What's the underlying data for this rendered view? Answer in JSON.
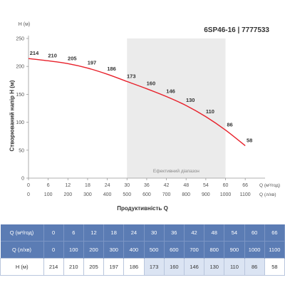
{
  "model": "6SP46-16 | 7777533",
  "chart_data": {
    "type": "line",
    "y_unit": "H (м)",
    "y_axis_label": "Створюваний напір H (м)",
    "x_axis_label": "Продуктивність Q",
    "x1_unit": "Q (м³/год)",
    "x2_unit": "Q (л/хв)",
    "x": [
      0,
      6,
      12,
      18,
      24,
      30,
      36,
      42,
      48,
      54,
      60,
      66
    ],
    "x2": [
      0,
      100,
      200,
      300,
      400,
      500,
      600,
      700,
      800,
      900,
      1000,
      1100
    ],
    "series": [
      {
        "values": [
          214,
          210,
          205,
          197,
          186,
          173,
          160,
          146,
          130,
          110,
          86,
          58
        ]
      }
    ],
    "ylim": [
      0,
      250
    ],
    "yticks": [
      0,
      50,
      100,
      150,
      200,
      250
    ],
    "xlim": [
      0,
      69
    ],
    "efficient_range": {
      "from": 30,
      "to": 60,
      "label": "Ефективний діапазон"
    },
    "grid": false,
    "line_color": "#e8202a",
    "band_color": "#ebebeb"
  },
  "table": {
    "rows": [
      {
        "label": "Q (м³/год)",
        "values": [
          "0",
          "6",
          "12",
          "18",
          "24",
          "30",
          "36",
          "42",
          "48",
          "54",
          "60",
          "66"
        ]
      },
      {
        "label": "Q (л/хв)",
        "values": [
          "0",
          "100",
          "200",
          "300",
          "400",
          "500",
          "600",
          "700",
          "800",
          "900",
          "1000",
          "1100"
        ]
      },
      {
        "label": "H (м)",
        "values": [
          "214",
          "210",
          "205",
          "197",
          "186",
          "173",
          "160",
          "146",
          "130",
          "110",
          "86",
          "58"
        ]
      }
    ]
  }
}
